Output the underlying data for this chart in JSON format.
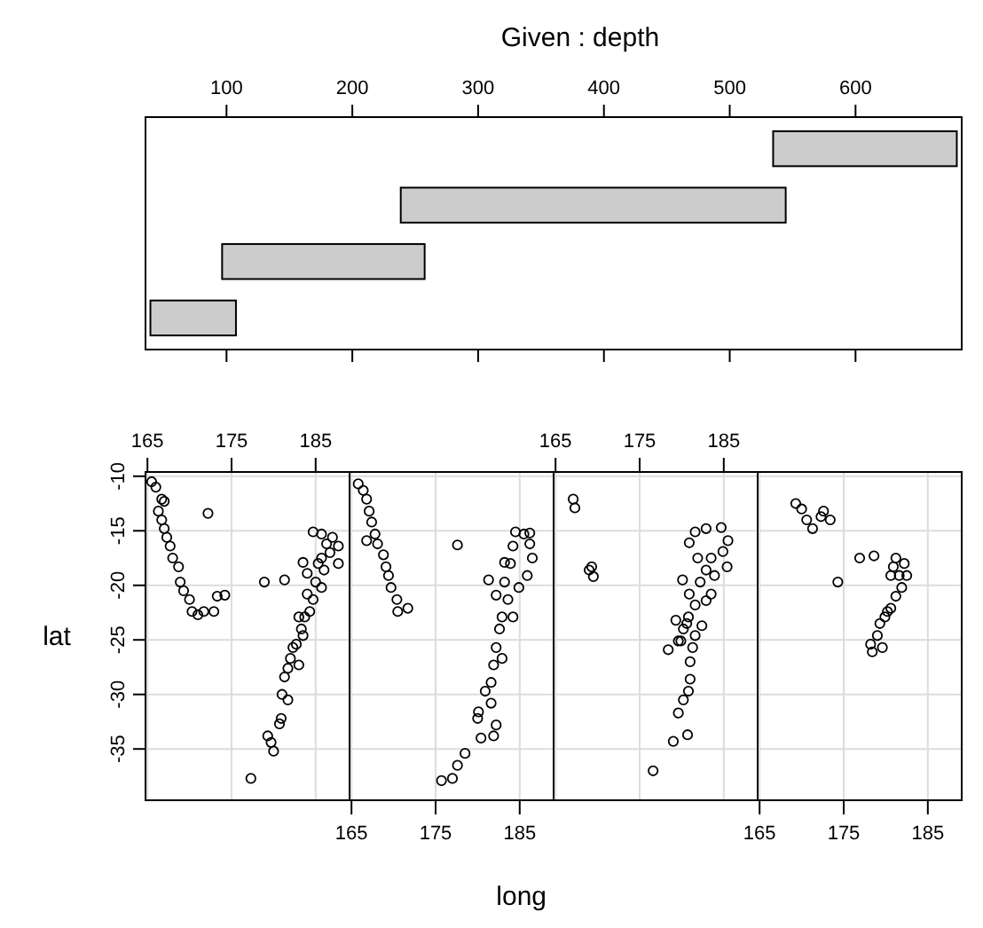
{
  "chart_data": [
    {
      "type": "bar",
      "orientation": "horizontal",
      "title": "Given : depth",
      "categories": [
        null,
        null,
        null,
        null
      ],
      "base": [
        534.5,
        238.5,
        96.5,
        39.5
      ],
      "values": [
        146,
        306,
        161,
        68
      ],
      "color": "#cccccc",
      "xlim": [
        35.6,
        684.4
      ],
      "xticks": [
        100,
        200,
        300,
        400,
        500,
        600
      ],
      "tick_labels": "x"
    },
    {
      "type": "scatter",
      "ylabel": "lat",
      "color": "#000000",
      "marker": "circle",
      "grid": true,
      "xlim": [
        164.77,
        189.03
      ],
      "ylim": [
        -39.7,
        -9.61
      ],
      "xticks": [
        165,
        175,
        185
      ],
      "yticks": [
        -10,
        -15,
        -20,
        -25,
        -30,
        -35
      ],
      "x": [
        165.5,
        166.0,
        166.7,
        167.0,
        166.3,
        166.7,
        167.0,
        167.3,
        167.7,
        168.0,
        168.7,
        168.9,
        169.3,
        170.0,
        170.3,
        171.0,
        171.7,
        172.9,
        173.3,
        174.2,
        172.2,
        178.9,
        181.3,
        177.3,
        179.3,
        180.0,
        180.7,
        181.0,
        181.7,
        181.3,
        182.0,
        183.0,
        182.3,
        183.3,
        183.7,
        184.3,
        184.0,
        184.7,
        185.0,
        185.7,
        185.3,
        186.0,
        183.5,
        184.0,
        185.7,
        184.7,
        185.7,
        187.0,
        187.7,
        186.7,
        187.7,
        186.3,
        183.0,
        183.5,
        182.7,
        181.7,
        180.9,
        179.7
      ],
      "values": [
        -10.5,
        -11.0,
        -12.1,
        -12.3,
        -13.2,
        -14.0,
        -14.8,
        -15.6,
        -16.4,
        -17.5,
        -18.3,
        -19.7,
        -20.5,
        -21.3,
        -22.4,
        -22.7,
        -22.4,
        -22.4,
        -21.0,
        -20.9,
        -13.4,
        -19.7,
        -19.5,
        -37.7,
        -33.8,
        -35.2,
        -32.7,
        -30.0,
        -30.5,
        -28.4,
        -26.7,
        -27.3,
        -25.7,
        -24.0,
        -22.9,
        -22.4,
        -20.8,
        -21.3,
        -19.7,
        -20.2,
        -18.0,
        -18.6,
        -17.9,
        -18.9,
        -17.5,
        -15.1,
        -15.3,
        -15.6,
        -16.4,
        -17.0,
        -18.0,
        -16.2,
        -22.9,
        -24.6,
        -25.4,
        -27.6,
        -32.2,
        -34.4
      ]
    },
    {
      "type": "scatter",
      "xlabel": "long",
      "color": "#000000",
      "marker": "circle",
      "grid": true,
      "tick_labels": "x",
      "xlim": [
        164.77,
        189.03
      ],
      "ylim": [
        -39.7,
        -9.61
      ],
      "xticks": [
        165,
        175,
        185
      ],
      "yticks": [
        -10,
        -15,
        -20,
        -25,
        -30,
        -35
      ],
      "x": [
        165.8,
        166.4,
        166.8,
        167.1,
        167.4,
        167.8,
        166.8,
        168.1,
        168.8,
        169.1,
        169.4,
        169.7,
        170.4,
        170.5,
        171.7,
        177.6,
        181.3,
        175.7,
        177.0,
        177.6,
        178.5,
        180.4,
        181.9,
        180.1,
        180.9,
        181.6,
        181.9,
        182.2,
        182.6,
        182.9,
        183.6,
        183.2,
        183.9,
        184.2,
        184.5,
        185.5,
        186.2,
        186.5,
        185.9,
        184.9,
        184.2,
        182.9,
        181.6,
        182.2,
        180.0,
        186.2,
        183.2,
        182.2
      ],
      "values": [
        -10.7,
        -11.3,
        -12.1,
        -13.2,
        -14.2,
        -15.3,
        -15.9,
        -16.2,
        -17.2,
        -18.3,
        -19.1,
        -20.2,
        -21.3,
        -22.4,
        -22.1,
        -16.3,
        -19.5,
        -37.9,
        -37.7,
        -36.5,
        -35.4,
        -34.0,
        -33.8,
        -31.6,
        -29.7,
        -28.9,
        -27.3,
        -25.7,
        -24.0,
        -22.9,
        -21.3,
        -19.7,
        -18.0,
        -16.4,
        -15.1,
        -15.3,
        -16.2,
        -17.5,
        -19.1,
        -20.2,
        -22.9,
        -26.7,
        -30.8,
        -32.8,
        -32.2,
        -15.2,
        -17.9,
        -20.9
      ]
    },
    {
      "type": "scatter",
      "color": "#000000",
      "marker": "circle",
      "grid": true,
      "tick_labels": "x",
      "xlim": [
        164.77,
        189.03
      ],
      "ylim": [
        -39.7,
        -9.61
      ],
      "xticks": [
        165,
        175,
        185
      ],
      "yticks": [
        -10,
        -15,
        -20,
        -25,
        -30,
        -35
      ],
      "x": [
        167.1,
        167.3,
        169.0,
        169.5,
        169.3,
        176.6,
        179.0,
        180.7,
        179.6,
        180.2,
        180.8,
        181.0,
        181.0,
        178.4,
        179.6,
        179.3,
        180.6,
        182.4,
        181.6,
        180.9,
        180.1,
        182.2,
        182.9,
        183.5,
        181.9,
        180.9,
        181.6,
        182.9,
        184.7,
        185.5,
        185.4,
        184.9,
        183.5,
        182.9,
        181.6,
        181.3,
        180.2,
        179.9,
        180.8,
        183.9
      ],
      "values": [
        -12.1,
        -12.9,
        -18.6,
        -19.2,
        -18.3,
        -37.0,
        -34.3,
        -33.7,
        -31.7,
        -30.5,
        -29.7,
        -28.6,
        -27.0,
        -25.9,
        -25.1,
        -23.2,
        -23.5,
        -23.7,
        -21.8,
        -20.8,
        -19.5,
        -19.7,
        -18.6,
        -17.5,
        -17.5,
        -16.1,
        -15.1,
        -14.8,
        -14.7,
        -15.9,
        -18.3,
        -16.9,
        -20.8,
        -21.4,
        -24.6,
        -25.7,
        -24.0,
        -25.1,
        -22.9,
        -19.1
      ]
    },
    {
      "type": "scatter",
      "color": "#000000",
      "marker": "circle",
      "grid": true,
      "tick_labels": "x",
      "xlim": [
        164.77,
        189.03
      ],
      "ylim": [
        -39.7,
        -9.61
      ],
      "xticks": [
        165,
        175,
        185
      ],
      "yticks": [
        -10,
        -15,
        -20,
        -25,
        -30,
        -35
      ],
      "x": [
        169.3,
        170.0,
        170.6,
        171.3,
        172.6,
        173.4,
        172.3,
        174.3,
        176.9,
        178.6,
        180.6,
        181.2,
        182.2,
        182.5,
        181.9,
        181.2,
        180.6,
        179.9,
        179.3,
        179.0,
        178.2,
        178.4,
        179.6,
        180.2,
        181.6,
        180.9
      ],
      "values": [
        -12.5,
        -13.0,
        -14.0,
        -14.8,
        -13.2,
        -14.0,
        -13.7,
        -19.7,
        -17.5,
        -17.3,
        -19.1,
        -17.5,
        -18.0,
        -19.1,
        -20.2,
        -21.0,
        -22.1,
        -22.9,
        -23.5,
        -24.6,
        -25.4,
        -26.1,
        -25.7,
        -22.4,
        -19.1,
        -18.3
      ]
    }
  ]
}
